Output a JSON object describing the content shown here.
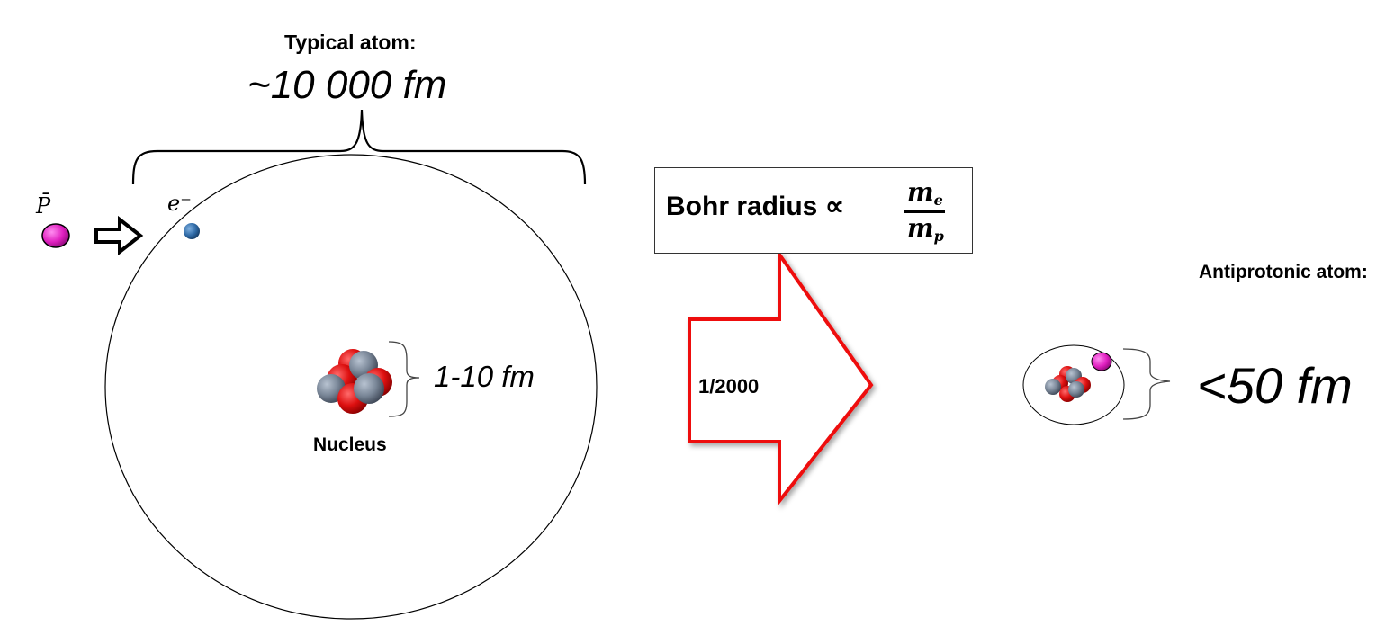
{
  "typical_atom": {
    "title": "Typical atom:",
    "size": "~10 000 fm",
    "electron_label": "e⁻",
    "antiproton_label": "P̄"
  },
  "nucleus": {
    "label": "Nucleus",
    "size": "1-10 fm"
  },
  "bohr_box": {
    "text": "Bohr radius ∝",
    "numerator": "m",
    "numerator_sub": "e",
    "denominator": "m",
    "denominator_sub": "p"
  },
  "arrow": {
    "label": "1/2000",
    "color": "#ee1111"
  },
  "antiprotonic_atom": {
    "title": "Antiprotonic atom:",
    "size": "<50 fm"
  },
  "colors": {
    "antiproton": "#e020c0",
    "electron": "#2f6aa6",
    "proton": "#dd1010",
    "neutron": "#7a8798"
  }
}
